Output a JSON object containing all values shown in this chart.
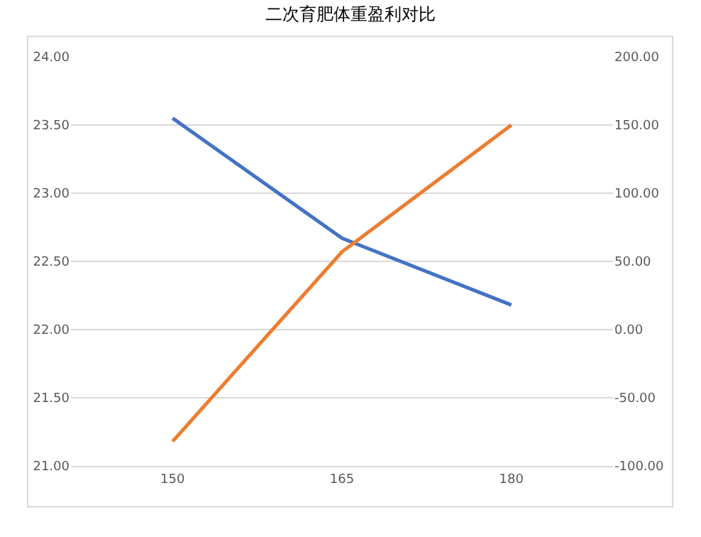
{
  "chart_data": {
    "type": "line",
    "title": "二次育肥体重盈利对比",
    "categories": [
      "150",
      "165",
      "180"
    ],
    "series": [
      {
        "color": "#4472c4",
        "values": [
          23.55,
          22.67,
          22.18
        ]
      },
      {
        "color": "#ed7d31",
        "values": [
          -82,
          57,
          150
        ],
        "axis": "y2"
      }
    ],
    "ylim": [
      21,
      24
    ],
    "yticks": [
      {
        "value": 21,
        "label": "21.00"
      },
      {
        "value": 21.5,
        "label": "21.50"
      },
      {
        "value": 22,
        "label": "22.00"
      },
      {
        "value": 22.5,
        "label": "22.50"
      },
      {
        "value": 23,
        "label": "23.00"
      },
      {
        "value": 23.5,
        "label": "23.50"
      },
      {
        "value": 24,
        "label": "24.00"
      }
    ],
    "y2lim": [
      -100,
      200
    ],
    "y2ticks": [
      {
        "value": -100,
        "label": "-100.00"
      },
      {
        "value": -50,
        "label": "-50.00"
      },
      {
        "value": 0,
        "label": "0.00"
      },
      {
        "value": 50,
        "label": "50.00"
      },
      {
        "value": 100,
        "label": "100.00"
      },
      {
        "value": 150,
        "label": "150.00"
      },
      {
        "value": 200,
        "label": "200.00"
      }
    ],
    "grid": "y",
    "legend": false,
    "marker": "none",
    "line_style": "solid"
  }
}
